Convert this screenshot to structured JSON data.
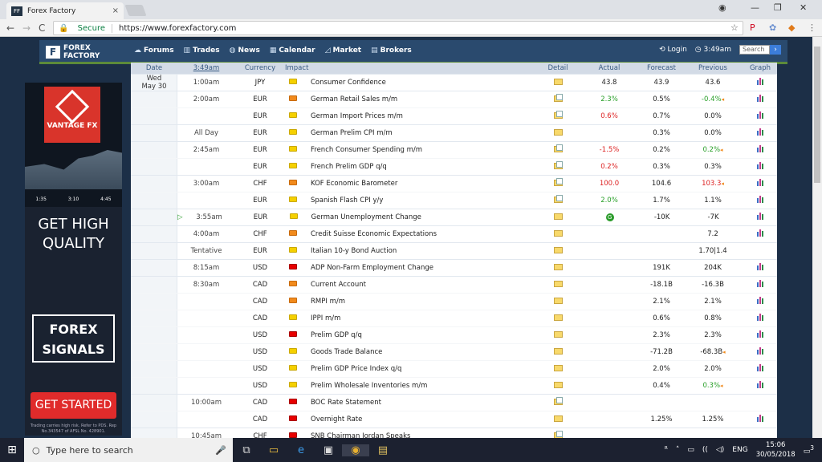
{
  "browser": {
    "tab_title": "Forex Factory",
    "tab_favicon": "FF",
    "secure_label": "Secure",
    "url": "https://www.forexfactory.com",
    "close_tab": "×",
    "win_min": "—",
    "win_max": "❐",
    "win_close": "✕",
    "back": "←",
    "forward": "→",
    "reload": "C",
    "star": "☆",
    "ext_pin": "P",
    "ext_x": "✿",
    "ext_fox": "◆",
    "menu": "⋮",
    "profile": "◉"
  },
  "site": {
    "logo_line1": "FOREX",
    "logo_line2": "FACTORY",
    "nav": [
      {
        "label": "Forums",
        "icon": "☁"
      },
      {
        "label": "Trades",
        "icon": "▥"
      },
      {
        "label": "News",
        "icon": "◍"
      },
      {
        "label": "Calendar",
        "icon": "▦"
      },
      {
        "label": "Market",
        "icon": "◿"
      },
      {
        "label": "Brokers",
        "icon": "▤"
      }
    ],
    "login": "Login",
    "time": "3:49am",
    "search_placeholder": "Search",
    "search_go": "🔍"
  },
  "ad": {
    "brand": "VANTAGE FX",
    "axis": [
      "1:35",
      "3:10",
      "4:45"
    ],
    "headline_line1": "GET HIGH",
    "headline_line2": "QUALITY",
    "signals_line1": "FOREX",
    "signals_line2": "SIGNALS",
    "cta": "GET STARTED",
    "fine_print": "Trading carries high risk. Refer to PDS. Rep No.343547 of AFSL No. 428901."
  },
  "calendar": {
    "headers": {
      "date": "Date",
      "time": "3:49am",
      "currency": "Currency",
      "impact": "Impact",
      "detail": "Detail",
      "actual": "Actual",
      "forecast": "Forecast",
      "previous": "Previous",
      "graph": "Graph"
    },
    "date_line1": "Wed",
    "date_line2": "May 30",
    "rows": [
      {
        "time": "1:00am",
        "cur": "JPY",
        "impact": "yellow",
        "event": "Consumer Confidence",
        "doc": false,
        "actual": "43.8",
        "actual_cls": "",
        "forecast": "43.9",
        "previous": "43.6",
        "prev_cls": "",
        "rev": false,
        "graph": true,
        "group": true
      },
      {
        "time": "2:00am",
        "cur": "EUR",
        "impact": "orange",
        "event": "German Retail Sales m/m",
        "doc": true,
        "actual": "2.3%",
        "actual_cls": "pos",
        "forecast": "0.5%",
        "previous": "-0.4%",
        "prev_cls": "pos",
        "rev": true,
        "graph": true,
        "group": true
      },
      {
        "time": "",
        "cur": "EUR",
        "impact": "yellow",
        "event": "German Import Prices m/m",
        "doc": true,
        "actual": "0.6%",
        "actual_cls": "neg",
        "forecast": "0.7%",
        "previous": "0.0%",
        "prev_cls": "",
        "rev": false,
        "graph": true,
        "group": false
      },
      {
        "time": "All Day",
        "cur": "EUR",
        "impact": "yellow",
        "event": "German Prelim CPI m/m",
        "doc": false,
        "actual": "",
        "actual_cls": "",
        "forecast": "0.3%",
        "previous": "0.0%",
        "prev_cls": "",
        "rev": false,
        "graph": true,
        "group": true
      },
      {
        "time": "2:45am",
        "cur": "EUR",
        "impact": "yellow",
        "event": "French Consumer Spending m/m",
        "doc": true,
        "actual": "-1.5%",
        "actual_cls": "neg",
        "forecast": "0.2%",
        "previous": "0.2%",
        "prev_cls": "pos",
        "rev": true,
        "graph": true,
        "group": true
      },
      {
        "time": "",
        "cur": "EUR",
        "impact": "yellow",
        "event": "French Prelim GDP q/q",
        "doc": true,
        "actual": "0.2%",
        "actual_cls": "neg",
        "forecast": "0.3%",
        "previous": "0.3%",
        "prev_cls": "",
        "rev": false,
        "graph": true,
        "group": false
      },
      {
        "time": "3:00am",
        "cur": "CHF",
        "impact": "orange",
        "event": "KOF Economic Barometer",
        "doc": true,
        "actual": "100.0",
        "actual_cls": "neg",
        "forecast": "104.6",
        "previous": "103.3",
        "prev_cls": "neg",
        "rev": true,
        "graph": true,
        "group": true
      },
      {
        "time": "",
        "cur": "EUR",
        "impact": "yellow",
        "event": "Spanish Flash CPI y/y",
        "doc": true,
        "actual": "2.0%",
        "actual_cls": "pos",
        "forecast": "1.7%",
        "previous": "1.1%",
        "prev_cls": "",
        "rev": false,
        "graph": true,
        "group": false
      },
      {
        "time": "3:55am",
        "cur": "EUR",
        "impact": "yellow",
        "event": "German Unemployment Change",
        "doc": false,
        "actual": "G",
        "actual_cls": "dot",
        "forecast": "-10K",
        "previous": "-7K",
        "prev_cls": "",
        "rev": false,
        "graph": true,
        "group": true
      },
      {
        "time": "4:00am",
        "cur": "CHF",
        "impact": "orange",
        "event": "Credit Suisse Economic Expectations",
        "doc": false,
        "actual": "",
        "actual_cls": "",
        "forecast": "",
        "previous": "7.2",
        "prev_cls": "",
        "rev": false,
        "graph": true,
        "group": true
      },
      {
        "time": "Tentative",
        "cur": "EUR",
        "impact": "yellow",
        "event": "Italian 10-y Bond Auction",
        "doc": false,
        "actual": "",
        "actual_cls": "",
        "forecast": "",
        "previous": "1.70|1.4",
        "prev_cls": "",
        "rev": false,
        "graph": false,
        "group": true
      },
      {
        "time": "8:15am",
        "cur": "USD",
        "impact": "red",
        "event": "ADP Non-Farm Employment Change",
        "doc": false,
        "actual": "",
        "actual_cls": "",
        "forecast": "191K",
        "previous": "204K",
        "prev_cls": "",
        "rev": false,
        "graph": true,
        "group": true
      },
      {
        "time": "8:30am",
        "cur": "CAD",
        "impact": "orange",
        "event": "Current Account",
        "doc": false,
        "actual": "",
        "actual_cls": "",
        "forecast": "-18.1B",
        "previous": "-16.3B",
        "prev_cls": "",
        "rev": false,
        "graph": true,
        "group": true
      },
      {
        "time": "",
        "cur": "CAD",
        "impact": "orange",
        "event": "RMPI m/m",
        "doc": false,
        "actual": "",
        "actual_cls": "",
        "forecast": "2.1%",
        "previous": "2.1%",
        "prev_cls": "",
        "rev": false,
        "graph": true,
        "group": false
      },
      {
        "time": "",
        "cur": "CAD",
        "impact": "yellow",
        "event": "IPPI m/m",
        "doc": false,
        "actual": "",
        "actual_cls": "",
        "forecast": "0.6%",
        "previous": "0.8%",
        "prev_cls": "",
        "rev": false,
        "graph": true,
        "group": false
      },
      {
        "time": "",
        "cur": "USD",
        "impact": "red",
        "event": "Prelim GDP q/q",
        "doc": false,
        "actual": "",
        "actual_cls": "",
        "forecast": "2.3%",
        "previous": "2.3%",
        "prev_cls": "",
        "rev": false,
        "graph": true,
        "group": false
      },
      {
        "time": "",
        "cur": "USD",
        "impact": "yellow",
        "event": "Goods Trade Balance",
        "doc": false,
        "actual": "",
        "actual_cls": "",
        "forecast": "-71.2B",
        "previous": "-68.3B",
        "prev_cls": "",
        "rev": true,
        "graph": true,
        "group": false
      },
      {
        "time": "",
        "cur": "USD",
        "impact": "yellow",
        "event": "Prelim GDP Price Index q/q",
        "doc": false,
        "actual": "",
        "actual_cls": "",
        "forecast": "2.0%",
        "previous": "2.0%",
        "prev_cls": "",
        "rev": false,
        "graph": true,
        "group": false
      },
      {
        "time": "",
        "cur": "USD",
        "impact": "yellow",
        "event": "Prelim Wholesale Inventories m/m",
        "doc": false,
        "actual": "",
        "actual_cls": "",
        "forecast": "0.4%",
        "previous": "0.3%",
        "prev_cls": "pos",
        "rev": true,
        "graph": true,
        "group": false
      },
      {
        "time": "10:00am",
        "cur": "CAD",
        "impact": "red",
        "event": "BOC Rate Statement",
        "doc": true,
        "actual": "",
        "actual_cls": "",
        "forecast": "",
        "previous": "",
        "prev_cls": "",
        "rev": false,
        "graph": false,
        "group": true
      },
      {
        "time": "",
        "cur": "CAD",
        "impact": "red",
        "event": "Overnight Rate",
        "doc": false,
        "actual": "",
        "actual_cls": "",
        "forecast": "1.25%",
        "previous": "1.25%",
        "prev_cls": "",
        "rev": false,
        "graph": true,
        "group": false
      },
      {
        "time": "10:45am",
        "cur": "CHF",
        "impact": "red",
        "event": "SNB Chairman Jordan Speaks",
        "doc": true,
        "actual": "",
        "actual_cls": "",
        "forecast": "",
        "previous": "",
        "prev_cls": "",
        "rev": false,
        "graph": false,
        "group": true
      }
    ]
  },
  "taskbar": {
    "start": "⊞",
    "search_placeholder": "Type here to search",
    "mic": "🎤",
    "icons": [
      "⧉",
      "▭",
      "e",
      "▣",
      "◉",
      "▤"
    ],
    "time": "15:06",
    "date": "30/05/2018",
    "tray": [
      "ᴿ",
      "˄",
      "▭",
      "((",
      "◁)",
      "ENG"
    ],
    "notif": "3"
  }
}
